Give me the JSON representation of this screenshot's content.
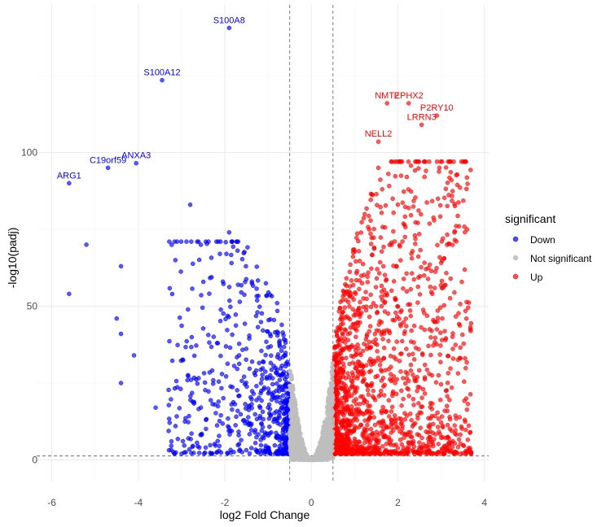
{
  "chart_data": {
    "type": "scatter",
    "title": "",
    "xlabel": "log2 Fold Change",
    "ylabel": "-log10(padj)",
    "xlim": [
      -6.35,
      4.1
    ],
    "ylim": [
      -7,
      148
    ],
    "x_ticks": [
      -6,
      -4,
      -2,
      0,
      2,
      4
    ],
    "y_ticks": [
      0,
      50,
      100
    ],
    "fc_threshold": 0.5,
    "padj_threshold_log": 1.3,
    "colors": {
      "Down": "#0000ff",
      "Not significant": "#bebebe",
      "Up": "#ff0000",
      "grid_major": "#ebebeb",
      "grid_minor": "#f5f5f5",
      "threshold_line": "#6e6e6e"
    },
    "legend": {
      "title": "significant",
      "position": "right",
      "entries": [
        "Down",
        "Not significant",
        "Up"
      ]
    },
    "labeled_genes": [
      {
        "gene": "S100A8",
        "x": -1.9,
        "y": 140.5,
        "group": "Down"
      },
      {
        "gene": "S100A12",
        "x": -3.45,
        "y": 123.5,
        "group": "Down"
      },
      {
        "gene": "ANXA3",
        "x": -4.05,
        "y": 96.5,
        "group": "Down"
      },
      {
        "gene": "C19orf59",
        "x": -4.7,
        "y": 95,
        "group": "Down"
      },
      {
        "gene": "ARG1",
        "x": -5.6,
        "y": 90,
        "group": "Down"
      },
      {
        "gene": "EPHX2",
        "x": 2.25,
        "y": 116,
        "group": "Up"
      },
      {
        "gene": "NMT2",
        "x": 1.75,
        "y": 116,
        "group": "Up"
      },
      {
        "gene": "P2RY10",
        "x": 2.9,
        "y": 112,
        "group": "Up"
      },
      {
        "gene": "LRRN3",
        "x": 2.55,
        "y": 109,
        "group": "Up"
      },
      {
        "gene": "NELL2",
        "x": 1.55,
        "y": 103.5,
        "group": "Up"
      }
    ],
    "extra_points": [
      {
        "x": -5.2,
        "y": 70,
        "group": "Down"
      },
      {
        "x": -5.6,
        "y": 54,
        "group": "Down"
      },
      {
        "x": -4.4,
        "y": 63,
        "group": "Down"
      },
      {
        "x": -4.5,
        "y": 46,
        "group": "Down"
      },
      {
        "x": -4.4,
        "y": 41,
        "group": "Down"
      },
      {
        "x": -4.1,
        "y": 34,
        "group": "Down"
      },
      {
        "x": -4.4,
        "y": 25,
        "group": "Down"
      },
      {
        "x": -3.6,
        "y": 17,
        "group": "Down"
      },
      {
        "x": -2.8,
        "y": 83,
        "group": "Down"
      },
      {
        "x": -1.9,
        "y": 74,
        "group": "Down"
      },
      {
        "x": 2.65,
        "y": 94,
        "group": "Up"
      },
      {
        "x": 1.55,
        "y": 95,
        "group": "Up"
      },
      {
        "x": 3.6,
        "y": 75,
        "group": "Up"
      },
      {
        "x": 3.1,
        "y": 39,
        "group": "Up"
      }
    ],
    "bulk_clouds": [
      {
        "group": "Down",
        "count": 760,
        "x_from": 0.5,
        "x_to": 3.3,
        "y_peak": 66,
        "seed": 11
      },
      {
        "group": "Up",
        "count": 1700,
        "x_from": 0.5,
        "x_to": 3.7,
        "y_peak": 92,
        "seed": 23
      },
      {
        "group": "Not significant",
        "count": 1200,
        "x_from": 0,
        "x_to": 0.5,
        "y_peak": 33,
        "seed": 37
      }
    ]
  }
}
